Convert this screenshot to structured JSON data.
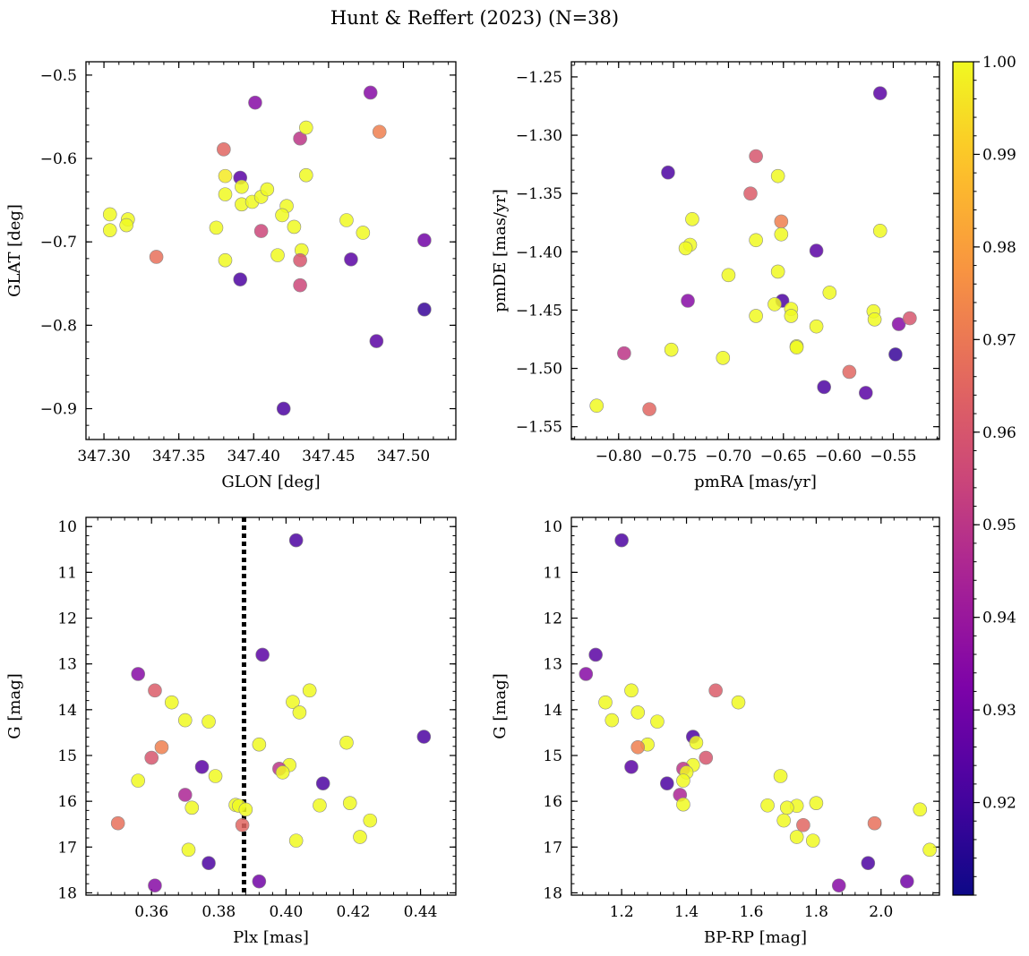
{
  "title": "Hunt & Reffert (2023) (N=38)",
  "colorbar": {
    "min": 0.91,
    "max": 1.0,
    "ticks": [
      0.92,
      0.93,
      0.94,
      0.95,
      0.96,
      0.97,
      0.98,
      0.99,
      1.0
    ],
    "tick_labels": [
      "0.92",
      "0.93",
      "0.94",
      "0.95",
      "0.96",
      "0.97",
      "0.98",
      "0.99",
      "1.00"
    ],
    "colormap": "plasma"
  },
  "chart_data": [
    {
      "type": "scatter",
      "xlabel": "GLON [deg]",
      "ylabel": "GLAT [deg]",
      "xlim": [
        347.288,
        347.535
      ],
      "ylim": [
        -0.937,
        -0.484
      ],
      "y_inverted": false,
      "xticks": [
        347.3,
        347.35,
        347.4,
        347.45,
        347.5
      ],
      "xtick_labels": [
        "347.30",
        "347.35",
        "347.40",
        "347.45",
        "347.50"
      ],
      "yticks": [
        -0.5,
        -0.6,
        -0.7,
        -0.8,
        -0.9
      ],
      "ytick_labels": [
        "−0.5",
        "−0.6",
        "−0.7",
        "−0.8",
        "−0.9"
      ],
      "points": [
        {
          "x": 347.401,
          "y": -0.533,
          "c": 0.935
        },
        {
          "x": 347.478,
          "y": -0.521,
          "c": 0.935
        },
        {
          "x": 347.484,
          "y": -0.568,
          "c": 0.972
        },
        {
          "x": 347.431,
          "y": -0.576,
          "c": 0.95
        },
        {
          "x": 347.435,
          "y": -0.563,
          "c": 1.0
        },
        {
          "x": 347.38,
          "y": -0.589,
          "c": 0.965
        },
        {
          "x": 347.381,
          "y": -0.621,
          "c": 0.997
        },
        {
          "x": 347.391,
          "y": -0.623,
          "c": 0.925
        },
        {
          "x": 347.392,
          "y": -0.634,
          "c": 1.0
        },
        {
          "x": 347.381,
          "y": -0.643,
          "c": 1.0
        },
        {
          "x": 347.392,
          "y": -0.655,
          "c": 1.0
        },
        {
          "x": 347.399,
          "y": -0.652,
          "c": 1.0
        },
        {
          "x": 347.405,
          "y": -0.646,
          "c": 1.0
        },
        {
          "x": 347.409,
          "y": -0.637,
          "c": 1.0
        },
        {
          "x": 347.435,
          "y": -0.62,
          "c": 1.0
        },
        {
          "x": 347.422,
          "y": -0.657,
          "c": 1.0
        },
        {
          "x": 347.419,
          "y": -0.668,
          "c": 1.0
        },
        {
          "x": 347.427,
          "y": -0.682,
          "c": 1.0
        },
        {
          "x": 347.304,
          "y": -0.667,
          "c": 1.0
        },
        {
          "x": 347.316,
          "y": -0.673,
          "c": 1.0
        },
        {
          "x": 347.315,
          "y": -0.68,
          "c": 1.0
        },
        {
          "x": 347.304,
          "y": -0.686,
          "c": 1.0
        },
        {
          "x": 347.375,
          "y": -0.683,
          "c": 1.0
        },
        {
          "x": 347.405,
          "y": -0.687,
          "c": 0.955
        },
        {
          "x": 347.462,
          "y": -0.674,
          "c": 1.0
        },
        {
          "x": 347.473,
          "y": -0.689,
          "c": 1.0
        },
        {
          "x": 347.514,
          "y": -0.698,
          "c": 0.93
        },
        {
          "x": 347.335,
          "y": -0.718,
          "c": 0.968
        },
        {
          "x": 347.381,
          "y": -0.722,
          "c": 1.0
        },
        {
          "x": 347.416,
          "y": -0.716,
          "c": 1.0
        },
        {
          "x": 347.432,
          "y": -0.71,
          "c": 1.0
        },
        {
          "x": 347.431,
          "y": -0.722,
          "c": 0.96
        },
        {
          "x": 347.465,
          "y": -0.721,
          "c": 0.925
        },
        {
          "x": 347.391,
          "y": -0.745,
          "c": 0.922
        },
        {
          "x": 347.431,
          "y": -0.752,
          "c": 0.955
        },
        {
          "x": 347.514,
          "y": -0.781,
          "c": 0.918
        },
        {
          "x": 347.482,
          "y": -0.819,
          "c": 0.925
        },
        {
          "x": 347.42,
          "y": -0.9,
          "c": 0.922
        }
      ]
    },
    {
      "type": "scatter",
      "xlabel": "pmRA [mas/yr]",
      "ylabel": "pmDE [mas/yr]",
      "xlim": [
        -0.843,
        -0.508
      ],
      "ylim": [
        -1.561,
        -1.237
      ],
      "y_inverted": false,
      "xticks": [
        -0.8,
        -0.75,
        -0.7,
        -0.65,
        -0.6,
        -0.55
      ],
      "xtick_labels": [
        "−0.80",
        "−0.75",
        "−0.70",
        "−0.65",
        "−0.60",
        "−0.55"
      ],
      "yticks": [
        -1.25,
        -1.3,
        -1.35,
        -1.4,
        -1.45,
        -1.5,
        -1.55
      ],
      "ytick_labels": [
        "−1.25",
        "−1.30",
        "−1.35",
        "−1.40",
        "−1.45",
        "−1.50",
        "−1.55"
      ],
      "points": [
        {
          "x": -0.562,
          "y": -1.264,
          "c": 0.925
        },
        {
          "x": -0.755,
          "y": -1.332,
          "c": 0.922
        },
        {
          "x": -0.675,
          "y": -1.318,
          "c": 0.96
        },
        {
          "x": -0.68,
          "y": -1.35,
          "c": 0.962
        },
        {
          "x": -0.655,
          "y": -1.335,
          "c": 1.0
        },
        {
          "x": -0.652,
          "y": -1.374,
          "c": 0.972
        },
        {
          "x": -0.733,
          "y": -1.372,
          "c": 1.0
        },
        {
          "x": -0.735,
          "y": -1.394,
          "c": 1.0
        },
        {
          "x": -0.739,
          "y": -1.397,
          "c": 1.0
        },
        {
          "x": -0.675,
          "y": -1.39,
          "c": 1.0
        },
        {
          "x": -0.652,
          "y": -1.385,
          "c": 1.0
        },
        {
          "x": -0.62,
          "y": -1.399,
          "c": 0.925
        },
        {
          "x": -0.562,
          "y": -1.382,
          "c": 1.0
        },
        {
          "x": -0.7,
          "y": -1.42,
          "c": 1.0
        },
        {
          "x": -0.655,
          "y": -1.417,
          "c": 1.0
        },
        {
          "x": -0.608,
          "y": -1.435,
          "c": 1.0
        },
        {
          "x": -0.737,
          "y": -1.442,
          "c": 0.935
        },
        {
          "x": -0.651,
          "y": -1.442,
          "c": 0.922
        },
        {
          "x": -0.658,
          "y": -1.445,
          "c": 1.0
        },
        {
          "x": -0.643,
          "y": -1.449,
          "c": 1.0
        },
        {
          "x": -0.643,
          "y": -1.455,
          "c": 1.0
        },
        {
          "x": -0.675,
          "y": -1.455,
          "c": 1.0
        },
        {
          "x": -0.62,
          "y": -1.464,
          "c": 1.0
        },
        {
          "x": -0.568,
          "y": -1.451,
          "c": 1.0
        },
        {
          "x": -0.567,
          "y": -1.458,
          "c": 1.0
        },
        {
          "x": -0.545,
          "y": -1.462,
          "c": 0.935
        },
        {
          "x": -0.535,
          "y": -1.457,
          "c": 0.96
        },
        {
          "x": -0.638,
          "y": -1.481,
          "c": 1.0
        },
        {
          "x": -0.638,
          "y": -1.482,
          "c": 1.0
        },
        {
          "x": -0.752,
          "y": -1.484,
          "c": 1.0
        },
        {
          "x": -0.795,
          "y": -1.487,
          "c": 0.95
        },
        {
          "x": -0.705,
          "y": -1.491,
          "c": 1.0
        },
        {
          "x": -0.548,
          "y": -1.488,
          "c": 0.918
        },
        {
          "x": -0.59,
          "y": -1.503,
          "c": 0.965
        },
        {
          "x": -0.613,
          "y": -1.516,
          "c": 0.922
        },
        {
          "x": -0.575,
          "y": -1.521,
          "c": 0.925
        },
        {
          "x": -0.82,
          "y": -1.532,
          "c": 1.0
        },
        {
          "x": -0.772,
          "y": -1.535,
          "c": 0.965
        }
      ]
    },
    {
      "type": "scatter",
      "xlabel": "Plx [mas]",
      "ylabel": "G [mag]",
      "xlim": [
        0.3405,
        0.4505
      ],
      "ylim": [
        18.05,
        9.8
      ],
      "y_inverted": true,
      "vline": 0.3875,
      "xticks": [
        0.36,
        0.38,
        0.4,
        0.42,
        0.44
      ],
      "xtick_labels": [
        "0.36",
        "0.38",
        "0.40",
        "0.42",
        "0.44"
      ],
      "yticks": [
        10,
        11,
        12,
        13,
        14,
        15,
        16,
        17,
        18
      ],
      "ytick_labels": [
        "10",
        "11",
        "12",
        "13",
        "14",
        "15",
        "16",
        "17",
        "18"
      ],
      "points": [
        {
          "x": 0.403,
          "y": 10.3,
          "c": 0.922
        },
        {
          "x": 0.393,
          "y": 12.8,
          "c": 0.925
        },
        {
          "x": 0.356,
          "y": 13.22,
          "c": 0.935
        },
        {
          "x": 0.361,
          "y": 13.58,
          "c": 0.962
        },
        {
          "x": 0.407,
          "y": 13.58,
          "c": 1.0
        },
        {
          "x": 0.366,
          "y": 13.84,
          "c": 1.0
        },
        {
          "x": 0.402,
          "y": 13.83,
          "c": 1.0
        },
        {
          "x": 0.404,
          "y": 14.06,
          "c": 1.0
        },
        {
          "x": 0.37,
          "y": 14.23,
          "c": 1.0
        },
        {
          "x": 0.377,
          "y": 14.26,
          "c": 1.0
        },
        {
          "x": 0.441,
          "y": 14.59,
          "c": 0.922
        },
        {
          "x": 0.418,
          "y": 14.72,
          "c": 1.0
        },
        {
          "x": 0.392,
          "y": 14.76,
          "c": 1.0
        },
        {
          "x": 0.363,
          "y": 14.82,
          "c": 0.972
        },
        {
          "x": 0.36,
          "y": 15.05,
          "c": 0.96
        },
        {
          "x": 0.401,
          "y": 15.21,
          "c": 1.0
        },
        {
          "x": 0.375,
          "y": 15.25,
          "c": 0.925
        },
        {
          "x": 0.398,
          "y": 15.29,
          "c": 0.95
        },
        {
          "x": 0.399,
          "y": 15.37,
          "c": 1.0
        },
        {
          "x": 0.379,
          "y": 15.45,
          "c": 1.0
        },
        {
          "x": 0.356,
          "y": 15.55,
          "c": 1.0
        },
        {
          "x": 0.411,
          "y": 15.61,
          "c": 0.922
        },
        {
          "x": 0.37,
          "y": 15.86,
          "c": 0.945
        },
        {
          "x": 0.419,
          "y": 16.04,
          "c": 1.0
        },
        {
          "x": 0.385,
          "y": 16.08,
          "c": 1.0
        },
        {
          "x": 0.386,
          "y": 16.1,
          "c": 1.0
        },
        {
          "x": 0.41,
          "y": 16.09,
          "c": 1.0
        },
        {
          "x": 0.372,
          "y": 16.14,
          "c": 1.0
        },
        {
          "x": 0.388,
          "y": 16.18,
          "c": 1.0
        },
        {
          "x": 0.425,
          "y": 16.42,
          "c": 1.0
        },
        {
          "x": 0.35,
          "y": 16.48,
          "c": 0.968
        },
        {
          "x": 0.387,
          "y": 16.52,
          "c": 0.965
        },
        {
          "x": 0.422,
          "y": 16.78,
          "c": 1.0
        },
        {
          "x": 0.403,
          "y": 16.86,
          "c": 1.0
        },
        {
          "x": 0.371,
          "y": 17.06,
          "c": 1.0
        },
        {
          "x": 0.377,
          "y": 17.35,
          "c": 0.922
        },
        {
          "x": 0.392,
          "y": 17.75,
          "c": 0.93
        },
        {
          "x": 0.361,
          "y": 17.84,
          "c": 0.935
        }
      ]
    },
    {
      "type": "scatter",
      "xlabel": "BP-RP [mag]",
      "ylabel": "G [mag]",
      "xlim": [
        1.045,
        2.18
      ],
      "ylim": [
        18.05,
        9.8
      ],
      "y_inverted": true,
      "xticks": [
        1.2,
        1.4,
        1.6,
        1.8,
        2.0
      ],
      "xtick_labels": [
        "1.2",
        "1.4",
        "1.6",
        "1.8",
        "2.0"
      ],
      "yticks": [
        10,
        11,
        12,
        13,
        14,
        15,
        16,
        17,
        18
      ],
      "ytick_labels": [
        "10",
        "11",
        "12",
        "13",
        "14",
        "15",
        "16",
        "17",
        "18"
      ],
      "points": [
        {
          "x": 1.2,
          "y": 10.3,
          "c": 0.922
        },
        {
          "x": 1.12,
          "y": 12.8,
          "c": 0.925
        },
        {
          "x": 1.09,
          "y": 13.22,
          "c": 0.935
        },
        {
          "x": 1.23,
          "y": 13.58,
          "c": 1.0
        },
        {
          "x": 1.49,
          "y": 13.58,
          "c": 0.962
        },
        {
          "x": 1.15,
          "y": 13.84,
          "c": 1.0
        },
        {
          "x": 1.56,
          "y": 13.84,
          "c": 1.0
        },
        {
          "x": 1.25,
          "y": 14.06,
          "c": 1.0
        },
        {
          "x": 1.17,
          "y": 14.23,
          "c": 1.0
        },
        {
          "x": 1.31,
          "y": 14.26,
          "c": 1.0
        },
        {
          "x": 1.42,
          "y": 14.59,
          "c": 0.922
        },
        {
          "x": 1.43,
          "y": 14.72,
          "c": 1.0
        },
        {
          "x": 1.28,
          "y": 14.76,
          "c": 1.0
        },
        {
          "x": 1.25,
          "y": 14.82,
          "c": 0.972
        },
        {
          "x": 1.46,
          "y": 15.05,
          "c": 0.96
        },
        {
          "x": 1.42,
          "y": 15.21,
          "c": 1.0
        },
        {
          "x": 1.23,
          "y": 15.25,
          "c": 0.925
        },
        {
          "x": 1.39,
          "y": 15.29,
          "c": 0.95
        },
        {
          "x": 1.4,
          "y": 15.37,
          "c": 1.0
        },
        {
          "x": 1.69,
          "y": 15.45,
          "c": 1.0
        },
        {
          "x": 1.39,
          "y": 15.55,
          "c": 1.0
        },
        {
          "x": 1.34,
          "y": 15.61,
          "c": 0.922
        },
        {
          "x": 1.38,
          "y": 15.86,
          "c": 0.945
        },
        {
          "x": 1.8,
          "y": 16.04,
          "c": 1.0
        },
        {
          "x": 1.39,
          "y": 16.07,
          "c": 1.0
        },
        {
          "x": 1.65,
          "y": 16.09,
          "c": 1.0
        },
        {
          "x": 1.74,
          "y": 16.1,
          "c": 1.0
        },
        {
          "x": 1.71,
          "y": 16.14,
          "c": 1.0
        },
        {
          "x": 2.12,
          "y": 16.18,
          "c": 1.0
        },
        {
          "x": 1.7,
          "y": 16.42,
          "c": 1.0
        },
        {
          "x": 1.98,
          "y": 16.48,
          "c": 0.968
        },
        {
          "x": 1.76,
          "y": 16.52,
          "c": 0.965
        },
        {
          "x": 1.74,
          "y": 16.78,
          "c": 1.0
        },
        {
          "x": 1.79,
          "y": 16.86,
          "c": 1.0
        },
        {
          "x": 2.15,
          "y": 17.06,
          "c": 1.0
        },
        {
          "x": 1.96,
          "y": 17.35,
          "c": 0.922
        },
        {
          "x": 2.08,
          "y": 17.75,
          "c": 0.93
        },
        {
          "x": 1.87,
          "y": 17.84,
          "c": 0.935
        }
      ]
    }
  ]
}
